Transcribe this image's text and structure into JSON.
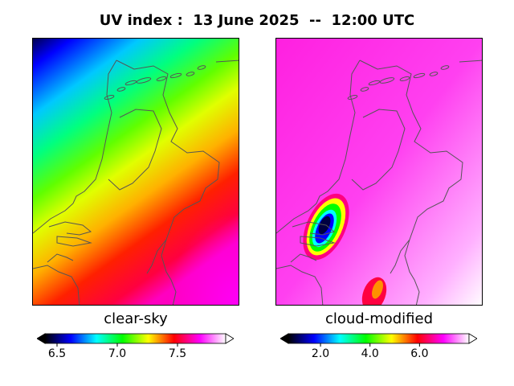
{
  "title": "UV index :  13 June 2025  --  12:00 UTC",
  "colors": {
    "rainbow_stops": [
      "#000000",
      "#0000ff",
      "#00ffff",
      "#00ff00",
      "#ffff00",
      "#ff0000",
      "#ff00ff",
      "#ffffff"
    ],
    "coastline": "#555555"
  },
  "panels": [
    {
      "label": "clear-sky",
      "colorbar": {
        "min": 6.4,
        "max": 7.9,
        "ticks": [
          6.5,
          7.0,
          7.5
        ],
        "tick_labels": [
          "6.5",
          "7.0",
          "7.5"
        ]
      }
    },
    {
      "label": "cloud-modified",
      "colorbar": {
        "min": 0.7,
        "max": 8.0,
        "ticks": [
          2.0,
          4.0,
          6.0
        ],
        "tick_labels": [
          "2.0",
          "4.0",
          "6.0"
        ]
      }
    }
  ]
}
